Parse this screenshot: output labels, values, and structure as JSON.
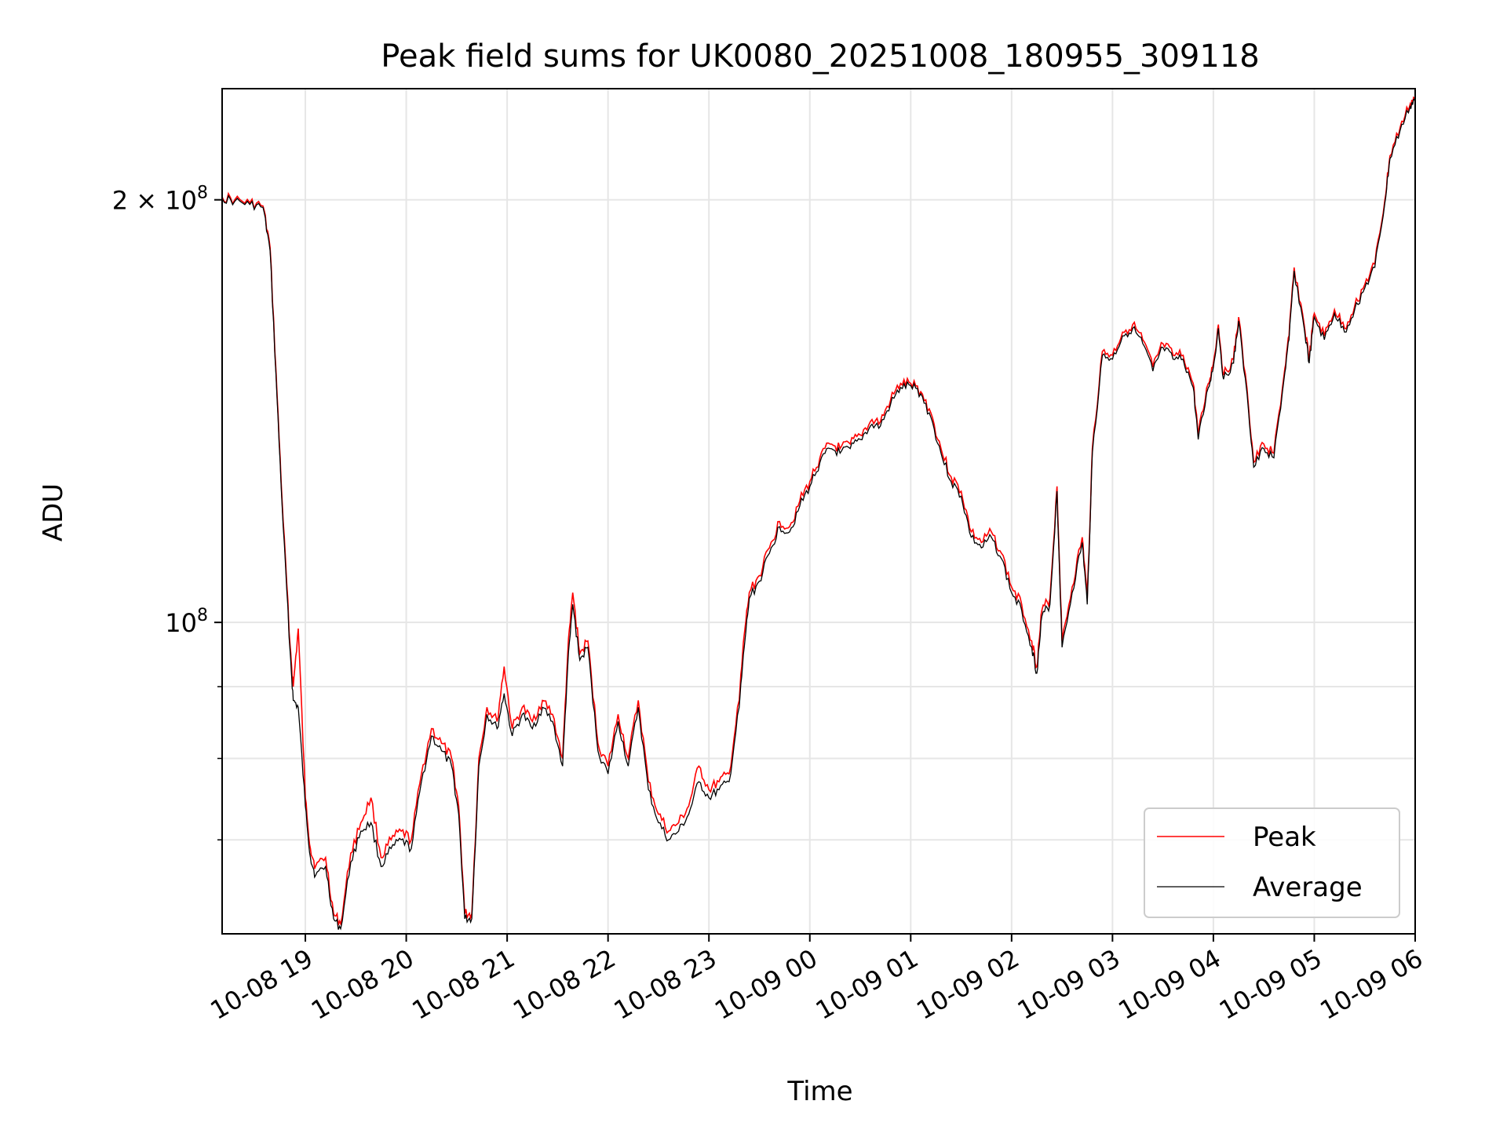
{
  "chart_data": {
    "type": "line",
    "title": "Peak field sums for UK0080_20251008_180955_309118",
    "xlabel": "Time",
    "ylabel": "ADU",
    "yscale": "log",
    "ylim": [
      60000000,
      240000000
    ],
    "xlim": [
      18.175,
      30.0
    ],
    "x_ticks": [
      {
        "value": 19,
        "label": "10-08 19"
      },
      {
        "value": 20,
        "label": "10-08 20"
      },
      {
        "value": 21,
        "label": "10-08 21"
      },
      {
        "value": 22,
        "label": "10-08 22"
      },
      {
        "value": 23,
        "label": "10-08 23"
      },
      {
        "value": 24,
        "label": "10-09 00"
      },
      {
        "value": 25,
        "label": "10-09 01"
      },
      {
        "value": 26,
        "label": "10-09 02"
      },
      {
        "value": 27,
        "label": "10-09 03"
      },
      {
        "value": 28,
        "label": "10-09 04"
      },
      {
        "value": 29,
        "label": "10-09 05"
      },
      {
        "value": 30,
        "label": "10-09 06"
      }
    ],
    "y_major_ticks": [
      {
        "value": 100000000,
        "base": "10",
        "exp": "8",
        "coef": ""
      },
      {
        "value": 200000000,
        "base": "10",
        "exp": "8",
        "coef": "2 × "
      }
    ],
    "y_minor_ticks": [
      70000000,
      80000000,
      90000000
    ],
    "grid": true,
    "legend": {
      "position": "lower-right",
      "entries": [
        {
          "name": "Peak",
          "color": "#ff0000"
        },
        {
          "name": "Average",
          "color": "#000000"
        }
      ]
    },
    "series": [
      {
        "name": "Peak",
        "color": "#ff0000",
        "points": [
          [
            18.175,
            201000000
          ],
          [
            18.3,
            200000000
          ],
          [
            18.45,
            199000000
          ],
          [
            18.58,
            198000000
          ],
          [
            18.65,
            185000000
          ],
          [
            18.72,
            145000000
          ],
          [
            18.78,
            118000000
          ],
          [
            18.85,
            96000000
          ],
          [
            18.88,
            90000000
          ],
          [
            18.93,
            99000000
          ],
          [
            19.0,
            75000000
          ],
          [
            19.05,
            69000000
          ],
          [
            19.1,
            67000000
          ],
          [
            19.2,
            68000000
          ],
          [
            19.28,
            62000000
          ],
          [
            19.35,
            61000000
          ],
          [
            19.45,
            68500000
          ],
          [
            19.55,
            72000000
          ],
          [
            19.65,
            75000000
          ],
          [
            19.75,
            68000000
          ],
          [
            19.85,
            70000000
          ],
          [
            19.95,
            71000000
          ],
          [
            20.05,
            70000000
          ],
          [
            20.15,
            78000000
          ],
          [
            20.25,
            84000000
          ],
          [
            20.35,
            82000000
          ],
          [
            20.45,
            80000000
          ],
          [
            20.52,
            74000000
          ],
          [
            20.58,
            62000000
          ],
          [
            20.65,
            62000000
          ],
          [
            20.72,
            80000000
          ],
          [
            20.8,
            87000000
          ],
          [
            20.9,
            85000000
          ],
          [
            20.97,
            93000000
          ],
          [
            21.05,
            84000000
          ],
          [
            21.15,
            87000000
          ],
          [
            21.25,
            85000000
          ],
          [
            21.35,
            88000000
          ],
          [
            21.45,
            86000000
          ],
          [
            21.55,
            80000000
          ],
          [
            21.6,
            95000000
          ],
          [
            21.65,
            105000000
          ],
          [
            21.72,
            95000000
          ],
          [
            21.8,
            97000000
          ],
          [
            21.9,
            82000000
          ],
          [
            22.0,
            79000000
          ],
          [
            22.1,
            86000000
          ],
          [
            22.2,
            80000000
          ],
          [
            22.3,
            88000000
          ],
          [
            22.4,
            77000000
          ],
          [
            22.5,
            73000000
          ],
          [
            22.6,
            71000000
          ],
          [
            22.7,
            72000000
          ],
          [
            22.8,
            74000000
          ],
          [
            22.9,
            79000000
          ],
          [
            23.0,
            76000000
          ],
          [
            23.1,
            77000000
          ],
          [
            23.2,
            78000000
          ],
          [
            23.3,
            88000000
          ],
          [
            23.35,
            98000000
          ],
          [
            23.4,
            105000000
          ],
          [
            23.5,
            108000000
          ],
          [
            23.6,
            113000000
          ],
          [
            23.7,
            118000000
          ],
          [
            23.8,
            117000000
          ],
          [
            23.9,
            122000000
          ],
          [
            24.0,
            126000000
          ],
          [
            24.1,
            131000000
          ],
          [
            24.2,
            134000000
          ],
          [
            24.3,
            133000000
          ],
          [
            24.4,
            134000000
          ],
          [
            24.5,
            136000000
          ],
          [
            24.6,
            139000000
          ],
          [
            24.7,
            139000000
          ],
          [
            24.8,
            144000000
          ],
          [
            24.9,
            148000000
          ],
          [
            25.0,
            148000000
          ],
          [
            25.1,
            146000000
          ],
          [
            25.2,
            141000000
          ],
          [
            25.3,
            133000000
          ],
          [
            25.4,
            127000000
          ],
          [
            25.5,
            124000000
          ],
          [
            25.6,
            116000000
          ],
          [
            25.7,
            114000000
          ],
          [
            25.8,
            116000000
          ],
          [
            25.9,
            112000000
          ],
          [
            26.0,
            106000000
          ],
          [
            26.1,
            103000000
          ],
          [
            26.2,
            97000000
          ],
          [
            26.25,
            93000000
          ],
          [
            26.3,
            102000000
          ],
          [
            26.38,
            104000000
          ],
          [
            26.45,
            125000000
          ],
          [
            26.5,
            97000000
          ],
          [
            26.6,
            106000000
          ],
          [
            26.7,
            115000000
          ],
          [
            26.75,
            104000000
          ],
          [
            26.8,
            133000000
          ],
          [
            26.9,
            156000000
          ],
          [
            27.0,
            155000000
          ],
          [
            27.1,
            161000000
          ],
          [
            27.2,
            163000000
          ],
          [
            27.3,
            159000000
          ],
          [
            27.4,
            152000000
          ],
          [
            27.5,
            158000000
          ],
          [
            27.6,
            155000000
          ],
          [
            27.7,
            155000000
          ],
          [
            27.8,
            148000000
          ],
          [
            27.85,
            136000000
          ],
          [
            27.95,
            148000000
          ],
          [
            28.0,
            153000000
          ],
          [
            28.05,
            163000000
          ],
          [
            28.1,
            150000000
          ],
          [
            28.2,
            154000000
          ],
          [
            28.25,
            165000000
          ],
          [
            28.35,
            142000000
          ],
          [
            28.4,
            130000000
          ],
          [
            28.5,
            134000000
          ],
          [
            28.6,
            132000000
          ],
          [
            28.7,
            150000000
          ],
          [
            28.75,
            160000000
          ],
          [
            28.8,
            179000000
          ],
          [
            28.9,
            163000000
          ],
          [
            28.95,
            154000000
          ],
          [
            29.0,
            166000000
          ],
          [
            29.1,
            160000000
          ],
          [
            29.2,
            167000000
          ],
          [
            29.3,
            162000000
          ],
          [
            29.4,
            168000000
          ],
          [
            29.5,
            174000000
          ],
          [
            29.6,
            180000000
          ],
          [
            29.7,
            200000000
          ],
          [
            29.75,
            215000000
          ],
          [
            29.85,
            225000000
          ],
          [
            29.95,
            234000000
          ],
          [
            30.0,
            237000000
          ]
        ]
      },
      {
        "name": "Average",
        "color": "#000000",
        "points": [
          [
            18.175,
            200500000
          ],
          [
            18.3,
            199500000
          ],
          [
            18.45,
            198500000
          ],
          [
            18.58,
            197500000
          ],
          [
            18.65,
            184000000
          ],
          [
            18.72,
            144000000
          ],
          [
            18.78,
            117000000
          ],
          [
            18.85,
            95000000
          ],
          [
            18.88,
            88000000
          ],
          [
            18.93,
            87000000
          ],
          [
            19.0,
            74000000
          ],
          [
            19.05,
            68000000
          ],
          [
            19.1,
            66000000
          ],
          [
            19.2,
            67000000
          ],
          [
            19.28,
            61500000
          ],
          [
            19.35,
            60500000
          ],
          [
            19.45,
            67500000
          ],
          [
            19.55,
            71000000
          ],
          [
            19.65,
            72000000
          ],
          [
            19.75,
            67000000
          ],
          [
            19.85,
            69000000
          ],
          [
            19.95,
            70000000
          ],
          [
            20.05,
            69000000
          ],
          [
            20.15,
            77000000
          ],
          [
            20.25,
            83000000
          ],
          [
            20.35,
            81000000
          ],
          [
            20.45,
            79000000
          ],
          [
            20.52,
            73000000
          ],
          [
            20.58,
            61500000
          ],
          [
            20.65,
            61500000
          ],
          [
            20.72,
            79000000
          ],
          [
            20.8,
            86000000
          ],
          [
            20.9,
            84000000
          ],
          [
            20.97,
            89000000
          ],
          [
            21.05,
            83000000
          ],
          [
            21.15,
            86000000
          ],
          [
            21.25,
            84000000
          ],
          [
            21.35,
            87000000
          ],
          [
            21.45,
            85000000
          ],
          [
            21.55,
            79000000
          ],
          [
            21.6,
            93000000
          ],
          [
            21.65,
            103000000
          ],
          [
            21.72,
            94000000
          ],
          [
            21.8,
            96000000
          ],
          [
            21.9,
            81000000
          ],
          [
            22.0,
            78000000
          ],
          [
            22.1,
            85000000
          ],
          [
            22.2,
            79000000
          ],
          [
            22.3,
            87000000
          ],
          [
            22.4,
            76000000
          ],
          [
            22.5,
            72000000
          ],
          [
            22.6,
            70000000
          ],
          [
            22.7,
            71000000
          ],
          [
            22.8,
            73000000
          ],
          [
            22.9,
            77000000
          ],
          [
            23.0,
            75000000
          ],
          [
            23.1,
            76000000
          ],
          [
            23.2,
            77000000
          ],
          [
            23.3,
            87000000
          ],
          [
            23.35,
            96000000
          ],
          [
            23.4,
            104000000
          ],
          [
            23.5,
            107000000
          ],
          [
            23.6,
            112000000
          ],
          [
            23.7,
            117000000
          ],
          [
            23.8,
            116000000
          ],
          [
            23.9,
            121000000
          ],
          [
            24.0,
            125000000
          ],
          [
            24.1,
            130000000
          ],
          [
            24.2,
            133000000
          ],
          [
            24.3,
            132000000
          ],
          [
            24.4,
            133000000
          ],
          [
            24.5,
            135000000
          ],
          [
            24.6,
            138000000
          ],
          [
            24.7,
            138000000
          ],
          [
            24.8,
            143000000
          ],
          [
            24.9,
            147000000
          ],
          [
            25.0,
            147500000
          ],
          [
            25.1,
            145500000
          ],
          [
            25.2,
            140000000
          ],
          [
            25.3,
            132000000
          ],
          [
            25.4,
            126000000
          ],
          [
            25.5,
            123000000
          ],
          [
            25.6,
            115000000
          ],
          [
            25.7,
            113000000
          ],
          [
            25.8,
            115000000
          ],
          [
            25.9,
            111000000
          ],
          [
            26.0,
            105000000
          ],
          [
            26.1,
            102000000
          ],
          [
            26.2,
            96000000
          ],
          [
            26.25,
            92000000
          ],
          [
            26.3,
            101000000
          ],
          [
            26.38,
            103000000
          ],
          [
            26.45,
            124000000
          ],
          [
            26.5,
            96000000
          ],
          [
            26.6,
            105000000
          ],
          [
            26.7,
            114000000
          ],
          [
            26.75,
            103000000
          ],
          [
            26.8,
            132000000
          ],
          [
            26.9,
            155000000
          ],
          [
            27.0,
            154000000
          ],
          [
            27.1,
            160000000
          ],
          [
            27.2,
            162000000
          ],
          [
            27.3,
            158000000
          ],
          [
            27.4,
            151000000
          ],
          [
            27.5,
            157000000
          ],
          [
            27.6,
            154000000
          ],
          [
            27.7,
            154000000
          ],
          [
            27.8,
            147000000
          ],
          [
            27.85,
            135000000
          ],
          [
            27.95,
            147000000
          ],
          [
            28.0,
            152000000
          ],
          [
            28.05,
            162000000
          ],
          [
            28.1,
            149000000
          ],
          [
            28.2,
            153000000
          ],
          [
            28.25,
            164000000
          ],
          [
            28.35,
            141000000
          ],
          [
            28.4,
            129000000
          ],
          [
            28.5,
            133000000
          ],
          [
            28.6,
            131000000
          ],
          [
            28.7,
            149000000
          ],
          [
            28.75,
            159000000
          ],
          [
            28.8,
            178000000
          ],
          [
            28.9,
            162000000
          ],
          [
            28.95,
            153000000
          ],
          [
            29.0,
            165000000
          ],
          [
            29.1,
            159000000
          ],
          [
            29.2,
            166000000
          ],
          [
            29.3,
            161000000
          ],
          [
            29.4,
            167000000
          ],
          [
            29.5,
            173000000
          ],
          [
            29.6,
            179000000
          ],
          [
            29.7,
            199000000
          ],
          [
            29.75,
            214000000
          ],
          [
            29.85,
            224000000
          ],
          [
            29.95,
            233000000
          ],
          [
            30.0,
            236500000
          ]
        ]
      }
    ]
  }
}
